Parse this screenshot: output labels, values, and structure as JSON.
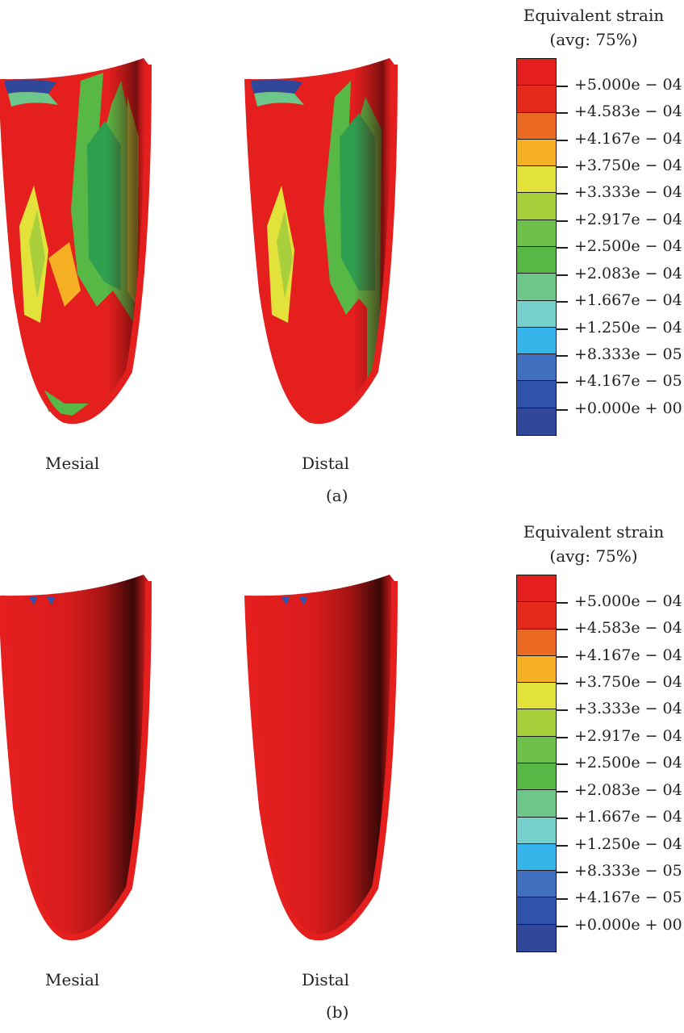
{
  "colors": {
    "scale": [
      "#e51e1e",
      "#e52a1a",
      "#ea6a24",
      "#f5b123",
      "#e3e23b",
      "#a9d03c",
      "#6fc04a",
      "#58b845",
      "#6ec78a",
      "#77d0cc",
      "#36b5ea",
      "#3f6fbe",
      "#3152aa",
      "#2f489a"
    ],
    "red_base": "#e51e1e",
    "red_dark": "#7a1010"
  },
  "legend_title": {
    "line1": "Equivalent strain",
    "line2": "(avg: 75%)"
  },
  "legend_ticks": [
    "+5.000e − 04",
    "+4.583e − 04",
    "+4.167e − 04",
    "+3.750e − 04",
    "+3.333e − 04",
    "+2.917e − 04",
    "+2.500e − 04",
    "+2.083e − 04",
    "+1.667e − 04",
    "+1.250e − 04",
    "+8.333e − 05",
    "+4.167e − 05",
    "+0.000e + 00"
  ],
  "panels": [
    {
      "label": "(a)",
      "view_labels": [
        "Mesial",
        "Distal"
      ]
    },
    {
      "label": "(b)",
      "view_labels": [
        "Mesial",
        "Distal"
      ]
    }
  ]
}
